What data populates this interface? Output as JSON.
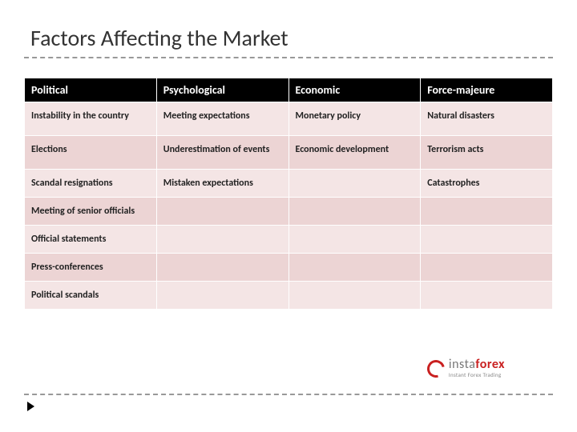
{
  "title": "Factors Affecting the Market",
  "table": {
    "columns": [
      "Political",
      "Psychological",
      "Economic",
      "Force-majeure"
    ],
    "rows": [
      [
        "Instability in the country",
        "Meeting expectations",
        "Monetary policy",
        "Natural disasters"
      ],
      [
        "Elections",
        "Underestimation of events",
        "Economic development",
        "Terrorism acts"
      ],
      [
        "Scandal resignations",
        "Mistaken expectations",
        "",
        "Catastrophes"
      ],
      [
        "Meeting of senior officials",
        "",
        "",
        ""
      ],
      [
        "Official statements",
        "",
        "",
        ""
      ],
      [
        "Press-conferences",
        "",
        "",
        ""
      ],
      [
        "Political scandals",
        "",
        "",
        ""
      ]
    ],
    "header_bg": "#000000",
    "header_fg": "#ffffff",
    "row_odd_bg": "#f4e5e5",
    "row_even_bg": "#ecd4d4",
    "header_fontsize": 14,
    "cell_fontsize": 12
  },
  "logo": {
    "brand_grey": "insta",
    "brand_red": "forex",
    "tagline": "Instant Forex Trading",
    "grey_color": "#777777",
    "red_color": "#c92020"
  },
  "colors": {
    "dash": "#999999",
    "background": "#ffffff"
  }
}
